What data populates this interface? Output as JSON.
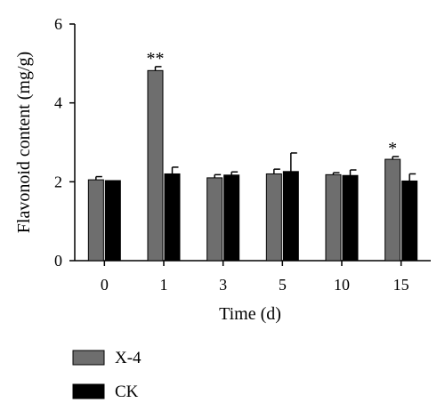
{
  "chart_data": {
    "type": "bar",
    "categories": [
      "0",
      "1",
      "3",
      "5",
      "10",
      "15"
    ],
    "series": [
      {
        "name": "X-4",
        "color": "#6e6e6e",
        "values": [
          2.05,
          4.82,
          2.1,
          2.2,
          2.18,
          2.57
        ],
        "errors": [
          0.08,
          0.1,
          0.08,
          0.12,
          0.05,
          0.07
        ]
      },
      {
        "name": "CK",
        "color": "#000000",
        "values": [
          2.03,
          2.2,
          2.17,
          2.26,
          2.16,
          2.02
        ],
        "errors": [
          0.0,
          0.17,
          0.08,
          0.47,
          0.14,
          0.18
        ]
      }
    ],
    "annotations": [
      {
        "category": "1",
        "series": "X-4",
        "text": "**"
      },
      {
        "category": "15",
        "series": "X-4",
        "text": "*"
      }
    ],
    "xlabel": "Time (d)",
    "ylabel": "Flavonoid content (mg/g)",
    "ylim": [
      0,
      6
    ],
    "yticks": [
      "0",
      "2",
      "4",
      "6"
    ],
    "grid": false,
    "legend_position": "bottom-left"
  }
}
